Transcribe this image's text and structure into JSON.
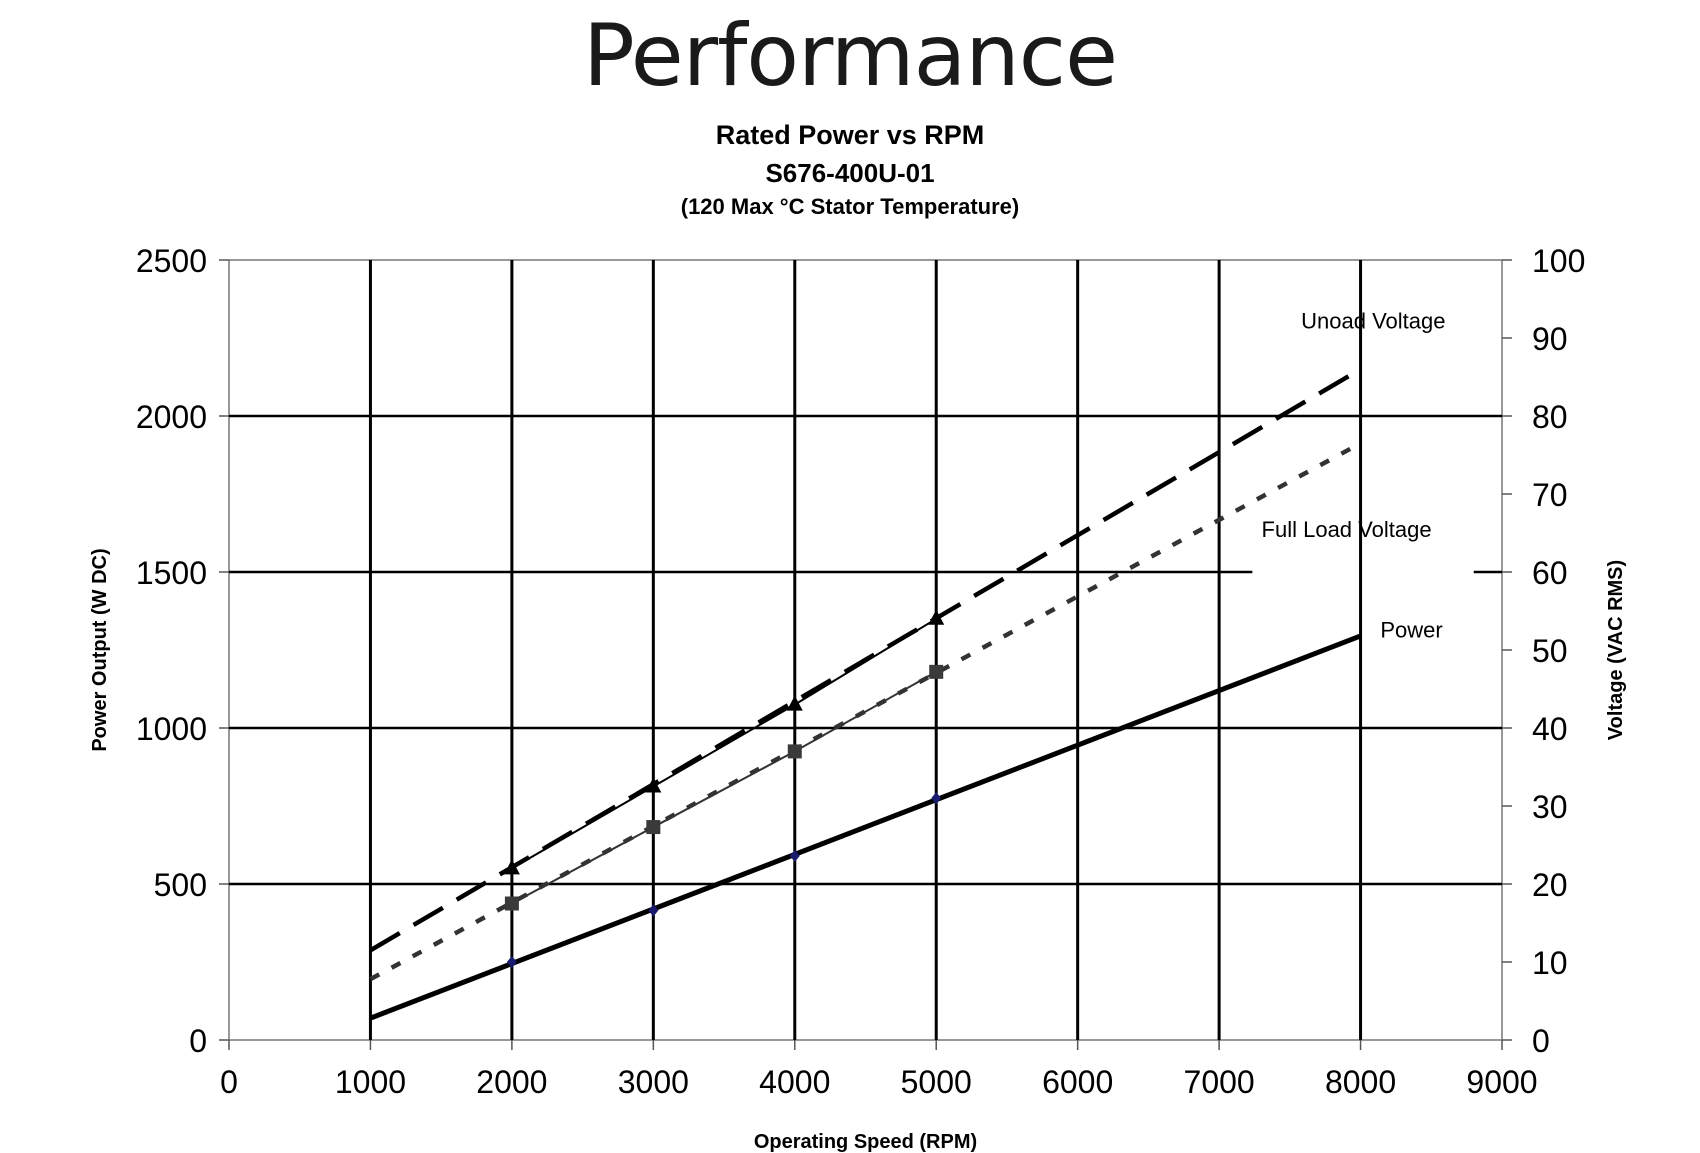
{
  "page_title": "Performance",
  "chart_data": {
    "type": "line",
    "title": "Rated Power vs RPM",
    "subtitle": "S676-400U-01",
    "note": "(120 Max °C Stator Temperature)",
    "xlabel": "Operating Speed (RPM)",
    "ylabel": "Power Output (W DC)",
    "y2label": "Voltage (VAC RMS)",
    "xlim": [
      0,
      9000
    ],
    "ylim": [
      0,
      2500
    ],
    "y2lim": [
      0,
      100
    ],
    "x_ticks": [
      "0",
      "1000",
      "2000",
      "3000",
      "4000",
      "5000",
      "6000",
      "7000",
      "8000",
      "9000"
    ],
    "y_ticks": [
      "0",
      "500",
      "1000",
      "1500",
      "2000",
      "2500"
    ],
    "y2_ticks": [
      "0",
      "10",
      "20",
      "30",
      "40",
      "50",
      "60",
      "70",
      "80",
      "90",
      "100"
    ],
    "grid": true,
    "series": [
      {
        "name": "Unoad Voltage",
        "axis": "right",
        "style": "dashed",
        "marker": "triangle",
        "color": "#000000",
        "line": [
          [
            1000,
            11.5
          ],
          [
            8000,
            86
          ]
        ],
        "points": [
          [
            2000,
            22
          ],
          [
            3000,
            32.5
          ],
          [
            4000,
            43
          ],
          [
            5000,
            54
          ]
        ]
      },
      {
        "name": "Full Load Voltage",
        "axis": "right",
        "style": "dotted",
        "marker": "square",
        "color": "#333333",
        "line": [
          [
            1000,
            7.8
          ],
          [
            8000,
            76.5
          ]
        ],
        "points": [
          [
            2000,
            17.5
          ],
          [
            3000,
            27.3
          ],
          [
            4000,
            37
          ],
          [
            5000,
            47.2
          ]
        ]
      },
      {
        "name": "Power",
        "axis": "left",
        "style": "solid",
        "marker": "diamond",
        "color": "#000000",
        "marker_color": "#1a1a6e",
        "line": [
          [
            1000,
            70
          ],
          [
            8000,
            1295
          ]
        ],
        "points": [
          [
            2000,
            250
          ],
          [
            3000,
            415
          ],
          [
            4000,
            590
          ],
          [
            5000,
            775
          ]
        ]
      }
    ]
  }
}
